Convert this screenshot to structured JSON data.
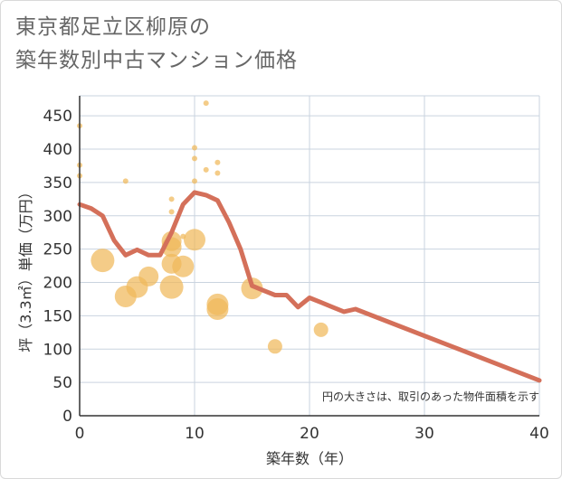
{
  "title_line1": "東京都足立区柳原の",
  "title_line2": "築年数別中古マンション価格",
  "chart_data": {
    "type": "scatter+line",
    "xlabel": "築年数（年）",
    "ylabel": "坪（3.3㎡）単価（万円）",
    "xlim": [
      0,
      40
    ],
    "ylim": [
      0,
      480
    ],
    "xticks": [
      0,
      10,
      20,
      30,
      40
    ],
    "yticks": [
      0,
      50,
      100,
      150,
      200,
      250,
      300,
      350,
      400,
      450
    ],
    "note": "円の大きさは、取引のあった物件面積を示す",
    "colors": {
      "line": "#d4705a",
      "bubble": "#f0b95a",
      "grid": "#c9d3df",
      "axis": "#333333"
    },
    "trend_line": [
      {
        "x": 0,
        "y": 317
      },
      {
        "x": 1,
        "y": 311
      },
      {
        "x": 2,
        "y": 300
      },
      {
        "x": 3,
        "y": 263
      },
      {
        "x": 4,
        "y": 241
      },
      {
        "x": 5,
        "y": 249
      },
      {
        "x": 6,
        "y": 241
      },
      {
        "x": 7,
        "y": 241
      },
      {
        "x": 8,
        "y": 275
      },
      {
        "x": 9,
        "y": 317
      },
      {
        "x": 10,
        "y": 335
      },
      {
        "x": 11,
        "y": 331
      },
      {
        "x": 12,
        "y": 323
      },
      {
        "x": 13,
        "y": 290
      },
      {
        "x": 14,
        "y": 250
      },
      {
        "x": 15,
        "y": 195
      },
      {
        "x": 16,
        "y": 188
      },
      {
        "x": 17,
        "y": 181
      },
      {
        "x": 18,
        "y": 181
      },
      {
        "x": 19,
        "y": 163
      },
      {
        "x": 20,
        "y": 177
      },
      {
        "x": 21,
        "y": 170
      },
      {
        "x": 22,
        "y": 163
      },
      {
        "x": 23,
        "y": 156
      },
      {
        "x": 24,
        "y": 160
      },
      {
        "x": 40,
        "y": 53
      }
    ],
    "bubbles": [
      {
        "x": 0,
        "y": 435,
        "size": 3
      },
      {
        "x": 0,
        "y": 376,
        "size": 3
      },
      {
        "x": 0,
        "y": 360,
        "size": 3
      },
      {
        "x": 2,
        "y": 233,
        "size": 13
      },
      {
        "x": 4,
        "y": 352,
        "size": 3
      },
      {
        "x": 4,
        "y": 179,
        "size": 12
      },
      {
        "x": 5,
        "y": 193,
        "size": 12
      },
      {
        "x": 6,
        "y": 209,
        "size": 11
      },
      {
        "x": 8,
        "y": 325,
        "size": 3
      },
      {
        "x": 8,
        "y": 306,
        "size": 3
      },
      {
        "x": 8,
        "y": 262,
        "size": 11
      },
      {
        "x": 8,
        "y": 253,
        "size": 11
      },
      {
        "x": 8,
        "y": 228,
        "size": 11
      },
      {
        "x": 8,
        "y": 193,
        "size": 13
      },
      {
        "x": 9,
        "y": 269,
        "size": 3
      },
      {
        "x": 9,
        "y": 224,
        "size": 12
      },
      {
        "x": 10,
        "y": 402,
        "size": 3
      },
      {
        "x": 10,
        "y": 386,
        "size": 3
      },
      {
        "x": 10,
        "y": 352,
        "size": 3
      },
      {
        "x": 10,
        "y": 264,
        "size": 12
      },
      {
        "x": 11,
        "y": 469,
        "size": 3
      },
      {
        "x": 11,
        "y": 369,
        "size": 3
      },
      {
        "x": 12,
        "y": 380,
        "size": 3
      },
      {
        "x": 12,
        "y": 364,
        "size": 3
      },
      {
        "x": 12,
        "y": 167,
        "size": 12
      },
      {
        "x": 12,
        "y": 160,
        "size": 12
      },
      {
        "x": 15,
        "y": 191,
        "size": 12
      },
      {
        "x": 17,
        "y": 104,
        "size": 8
      },
      {
        "x": 21,
        "y": 129,
        "size": 8
      }
    ]
  }
}
